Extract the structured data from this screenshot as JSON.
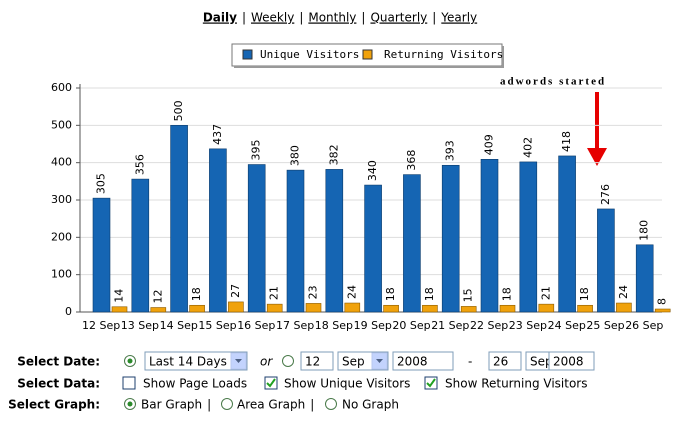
{
  "nav": {
    "links": [
      "Daily",
      "Weekly",
      "Monthly",
      "Quarterly",
      "Yearly"
    ],
    "separator": "|"
  },
  "chart_data": {
    "type": "bar",
    "categories": [
      "12 Sep",
      "13 Sep",
      "14 Sep",
      "15 Sep",
      "16 Sep",
      "17 Sep",
      "18 Sep",
      "19 Sep",
      "20 Sep",
      "21 Sep",
      "22 Sep",
      "23 Sep",
      "24 Sep",
      "25 Sep",
      "26 Sep"
    ],
    "series": [
      {
        "name": "Unique Visitors",
        "color": "#1565b3",
        "values": [
          305,
          356,
          500,
          437,
          395,
          380,
          382,
          340,
          368,
          393,
          409,
          402,
          418,
          276,
          180
        ]
      },
      {
        "name": "Returning Visitors",
        "color": "#f0a20c",
        "values": [
          14,
          12,
          18,
          27,
          21,
          23,
          24,
          18,
          18,
          15,
          18,
          21,
          18,
          24,
          8
        ]
      }
    ],
    "ylim": [
      0,
      600
    ],
    "yticks": [
      0,
      100,
      200,
      300,
      400,
      500,
      600
    ],
    "grid": true,
    "annotation": "adwords started"
  },
  "controls": {
    "select_date": {
      "label": "Select Date:",
      "preset": "Last 14 Days",
      "or": "or",
      "from_day": "12",
      "from_month": "Sep",
      "from_year": "2008",
      "dash": "-",
      "to_day": "26",
      "to_month": "Sep",
      "to_year": "2008"
    },
    "select_data": {
      "label": "Select Data:",
      "options": [
        "Show Page Loads",
        "Show Unique Visitors",
        "Show Returning Visitors"
      ],
      "checked": [
        false,
        true,
        true
      ]
    },
    "select_graph": {
      "label": "Select Graph:",
      "options": [
        "Bar Graph",
        "Area Graph",
        "No Graph"
      ],
      "separator": "|",
      "selected": 0
    }
  }
}
